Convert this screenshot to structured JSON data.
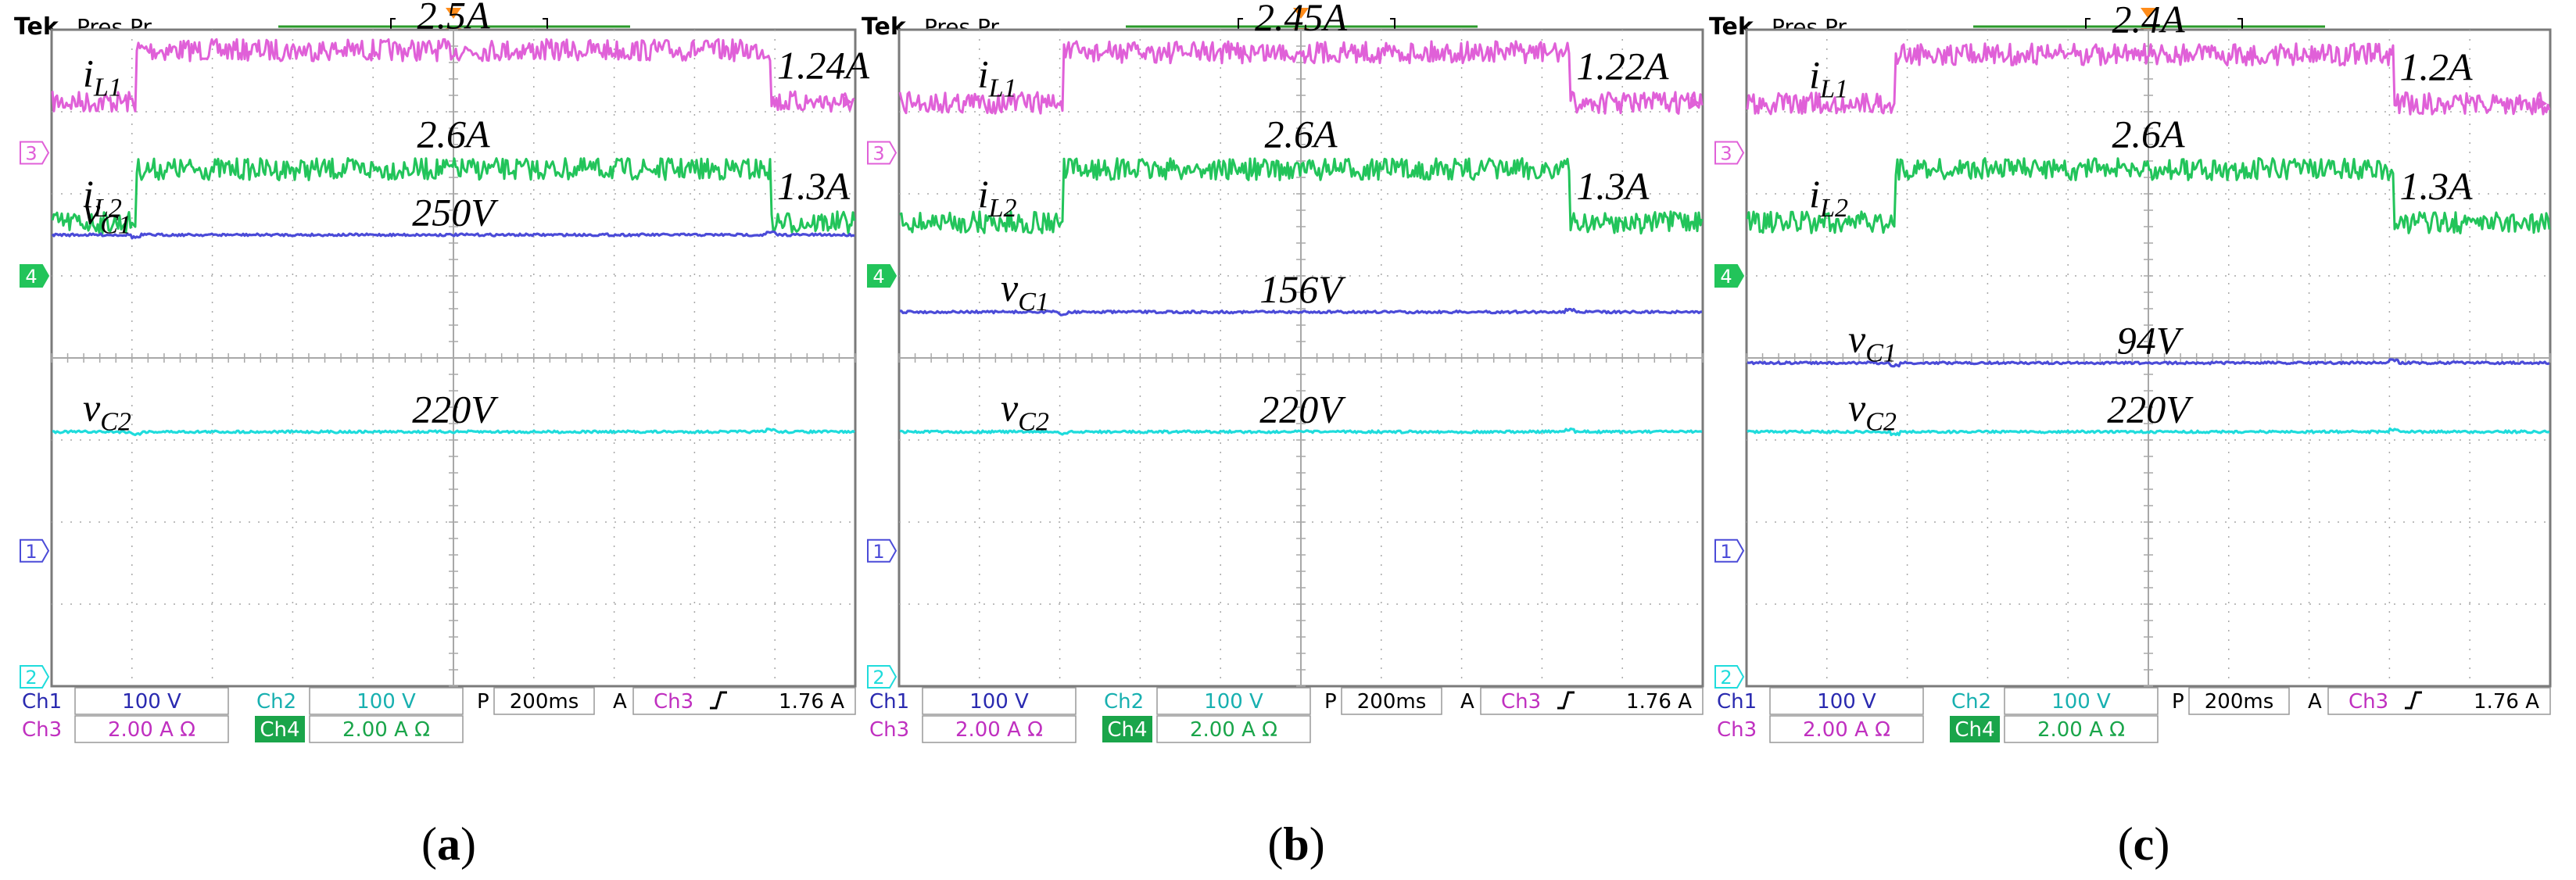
{
  "colors": {
    "ch1": "#4b4bd8",
    "ch2": "#1fdcdc",
    "ch3": "#e060d8",
    "ch4": "#22c45a",
    "ch1_text": "#2a2ab0",
    "ch2_text": "#18b0b0",
    "ch3_text": "#c030c0",
    "ch4_fill": "#1aa54a",
    "grid": "#a8a8a8",
    "frame": "#7a7a7a",
    "trigger": "#ff8c1a",
    "timebar": "#2a9a2a"
  },
  "icons": {
    "trigger_marker": "orange-down-triangle",
    "ch3_level_marker": "magenta-left-triangle",
    "trigger_edge": "rising-edge-glyph"
  },
  "chart_data": [
    {
      "type": "line",
      "title": "",
      "xlabel": "",
      "ylabel": "",
      "caption": "(a)",
      "header": {
        "brand": "Tek",
        "status": "Pres Pr"
      },
      "channel_markers": {
        "ch3": "3",
        "ch4": "4",
        "ch1": "1",
        "ch2": "2"
      },
      "x_divisions": 10,
      "y_divisions": 8,
      "step_on_div": 1.05,
      "step_off_div": 8.95,
      "series": [
        {
          "key": "iL1",
          "channel": "Ch3",
          "base": "i",
          "sub": "L1",
          "div_per_unit": 0.5,
          "offset_div": 2.5,
          "values": [
            1.24,
            2.5,
            1.24
          ],
          "labels": {
            "high": "2.5A",
            "low": "1.24A"
          }
        },
        {
          "key": "iL2",
          "channel": "Ch4",
          "base": "i",
          "sub": "L2",
          "div_per_unit": 0.5,
          "offset_div": 1.0,
          "values": [
            1.3,
            2.6,
            1.3
          ],
          "labels": {
            "high": "2.6A",
            "low": "1.3A"
          }
        },
        {
          "key": "vC1",
          "channel": "Ch1",
          "base": "v",
          "sub": "C1",
          "div_per_unit": 0.01,
          "offset_div": -1.0,
          "values": [
            250,
            250,
            250
          ],
          "labels": {
            "high": "250V"
          }
        },
        {
          "key": "vC2",
          "channel": "Ch2",
          "base": "v",
          "sub": "C2",
          "div_per_unit": 0.01,
          "offset_div": -3.1,
          "values": [
            220,
            220,
            220
          ],
          "labels": {
            "high": "220V"
          }
        }
      ],
      "settings": {
        "ch1_label": "Ch1",
        "ch1_scale": "100 V",
        "ch2_label": "Ch2",
        "ch2_scale": "100 V",
        "ch3_label": "Ch3",
        "ch3_scale": "2.00 A Ω",
        "ch4_label": "Ch4",
        "ch4_scale": "2.00 A Ω",
        "timebase_prefix": "P",
        "timebase": "200ms",
        "trigger_prefix": "A",
        "trigger_source": "Ch3",
        "trigger_level": "1.76 A"
      }
    },
    {
      "type": "line",
      "title": "",
      "xlabel": "",
      "ylabel": "",
      "caption": "(b)",
      "header": {
        "brand": "Tek",
        "status": "Pres Pr"
      },
      "channel_markers": {
        "ch3": "3",
        "ch4": "4",
        "ch1": "1",
        "ch2": "2"
      },
      "x_divisions": 10,
      "y_divisions": 8,
      "step_on_div": 2.05,
      "step_off_div": 8.35,
      "series": [
        {
          "key": "iL1",
          "channel": "Ch3",
          "base": "i",
          "sub": "L1",
          "div_per_unit": 0.5,
          "offset_div": 2.5,
          "values": [
            1.22,
            2.45,
            1.22
          ],
          "labels": {
            "high": "2.45A",
            "low": "1.22A"
          }
        },
        {
          "key": "iL2",
          "channel": "Ch4",
          "base": "i",
          "sub": "L2",
          "div_per_unit": 0.5,
          "offset_div": 1.0,
          "values": [
            1.3,
            2.6,
            1.3
          ],
          "labels": {
            "high": "2.6A",
            "low": "1.3A"
          }
        },
        {
          "key": "vC1",
          "channel": "Ch1",
          "base": "v",
          "sub": "C1",
          "div_per_unit": 0.01,
          "offset_div": -1.0,
          "values": [
            156,
            156,
            156
          ],
          "labels": {
            "high": "156V"
          }
        },
        {
          "key": "vC2",
          "channel": "Ch2",
          "base": "v",
          "sub": "C2",
          "div_per_unit": 0.01,
          "offset_div": -3.1,
          "values": [
            220,
            220,
            220
          ],
          "labels": {
            "high": "220V"
          }
        }
      ],
      "settings": {
        "ch1_label": "Ch1",
        "ch1_scale": "100 V",
        "ch2_label": "Ch2",
        "ch2_scale": "100 V",
        "ch3_label": "Ch3",
        "ch3_scale": "2.00 A Ω",
        "ch4_label": "Ch4",
        "ch4_scale": "2.00 A Ω",
        "timebase_prefix": "P",
        "timebase": "200ms",
        "trigger_prefix": "A",
        "trigger_source": "Ch3",
        "trigger_level": "1.76 A"
      }
    },
    {
      "type": "line",
      "title": "",
      "xlabel": "",
      "ylabel": "",
      "caption": "(c)",
      "header": {
        "brand": "Tek",
        "status": "Pres Pr"
      },
      "channel_markers": {
        "ch3": "3",
        "ch4": "4",
        "ch1": "1",
        "ch2": "2"
      },
      "x_divisions": 10,
      "y_divisions": 8,
      "step_on_div": 1.85,
      "step_off_div": 8.05,
      "series": [
        {
          "key": "iL1",
          "channel": "Ch3",
          "base": "i",
          "sub": "L1",
          "div_per_unit": 0.5,
          "offset_div": 2.5,
          "values": [
            1.2,
            2.4,
            1.2
          ],
          "labels": {
            "high": "2.4A",
            "low": "1.2A"
          }
        },
        {
          "key": "iL2",
          "channel": "Ch4",
          "base": "i",
          "sub": "L2",
          "div_per_unit": 0.5,
          "offset_div": 1.0,
          "values": [
            1.3,
            2.6,
            1.3
          ],
          "labels": {
            "high": "2.6A",
            "low": "1.3A"
          }
        },
        {
          "key": "vC1",
          "channel": "Ch1",
          "base": "v",
          "sub": "C1",
          "div_per_unit": 0.01,
          "offset_div": -1.0,
          "values": [
            94,
            94,
            94
          ],
          "labels": {
            "high": "94V"
          }
        },
        {
          "key": "vC2",
          "channel": "Ch2",
          "base": "v",
          "sub": "C2",
          "div_per_unit": 0.01,
          "offset_div": -3.1,
          "values": [
            220,
            220,
            220
          ],
          "labels": {
            "high": "220V"
          }
        }
      ],
      "settings": {
        "ch1_label": "Ch1",
        "ch1_scale": "100 V",
        "ch2_label": "Ch2",
        "ch2_scale": "100 V",
        "ch3_label": "Ch3",
        "ch3_scale": "2.00 A Ω",
        "ch4_label": "Ch4",
        "ch4_scale": "2.00 A Ω",
        "timebase_prefix": "P",
        "timebase": "200ms",
        "trigger_prefix": "A",
        "trigger_source": "Ch3",
        "trigger_level": "1.76 A"
      }
    }
  ]
}
